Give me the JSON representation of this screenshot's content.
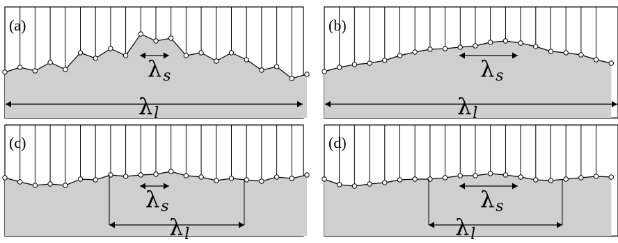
{
  "panels": [
    {
      "label": "(a)",
      "lambda_s": "λ",
      "lambda_s_sub": "s",
      "lambda_l": "λ",
      "lambda_l_sub": "l"
    },
    {
      "label": "(b)",
      "lambda_s": "λ",
      "lambda_s_sub": "s",
      "lambda_l": "λ",
      "lambda_l_sub": "l"
    },
    {
      "label": "(c)",
      "lambda_s": "λ",
      "lambda_s_sub": "s",
      "lambda_l": "λ",
      "lambda_l_sub": "l"
    },
    {
      "label": "(d)",
      "lambda_s": "λ",
      "lambda_s_sub": "s",
      "lambda_l": "λ",
      "lambda_l_sub": "l"
    }
  ],
  "colors": {
    "fill": "#cfcfcf",
    "stroke": "#000000",
    "node": "#ffffff"
  }
}
